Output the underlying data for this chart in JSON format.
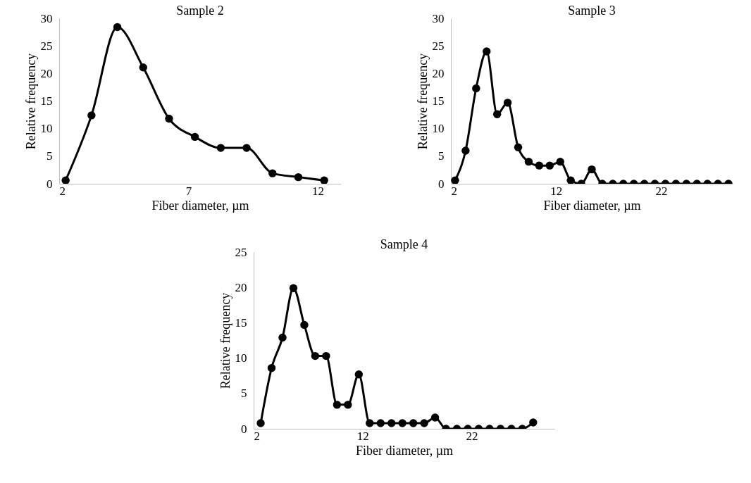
{
  "chart_data": [
    {
      "type": "line",
      "title": "Sample 2",
      "xlabel": "Fiber diameter, µm",
      "ylabel": "Relative frequency",
      "xlim": [
        2,
        12.9
      ],
      "xticks": [
        2,
        7,
        12
      ],
      "ylim": [
        0,
        30
      ],
      "yticks": [
        0,
        5,
        10,
        15,
        20,
        25,
        30
      ],
      "grid": false,
      "marker": "circle",
      "line_style": "solid",
      "series": [
        {
          "color": "#000000",
          "x": [
            2.25,
            3.25,
            4.25,
            5.25,
            6.25,
            7.25,
            8.25,
            9.25,
            10.25,
            11.25,
            12.25
          ],
          "values": [
            0.6,
            12.4,
            28.4,
            21.1,
            11.8,
            8.5,
            6.5,
            6.5,
            1.9,
            1.2,
            0.6
          ]
        }
      ]
    },
    {
      "type": "line",
      "title": "Sample 3",
      "xlabel": "Fiber diameter, µm",
      "ylabel": "Relative frequency",
      "xlim": [
        2,
        28.8
      ],
      "xticks": [
        2,
        12,
        22
      ],
      "ylim": [
        0,
        30
      ],
      "yticks": [
        0,
        5,
        10,
        15,
        20,
        25,
        30
      ],
      "grid": false,
      "marker": "circle",
      "line_style": "solid",
      "series": [
        {
          "color": "#000000",
          "x": [
            2.4,
            3.4,
            4.4,
            5.4,
            6.4,
            7.4,
            8.4,
            9.4,
            10.4,
            11.4,
            12.4,
            13.4,
            14.4,
            15.4,
            16.4,
            17.4,
            18.4,
            19.4,
            20.4,
            21.4,
            22.4,
            23.4,
            24.4,
            25.4,
            26.4,
            27.4,
            28.4
          ],
          "values": [
            0.6,
            6.0,
            17.3,
            24.0,
            12.6,
            14.7,
            6.6,
            4.0,
            3.3,
            3.3,
            4.0,
            0.6,
            0,
            2.6,
            0,
            0,
            0,
            0,
            0,
            0,
            0,
            0,
            0,
            0,
            0,
            0,
            0
          ]
        }
      ]
    },
    {
      "type": "line",
      "title": "Sample 4",
      "xlabel": "Fiber diameter, µm",
      "ylabel": "Relative frequency",
      "xlim": [
        2,
        29.6
      ],
      "xticks": [
        2,
        12,
        22
      ],
      "ylim": [
        0,
        25
      ],
      "yticks": [
        0,
        5,
        10,
        15,
        20,
        25
      ],
      "grid": false,
      "marker": "circle",
      "line_style": "solid",
      "series": [
        {
          "color": "#000000",
          "x": [
            2.65,
            3.65,
            4.65,
            5.65,
            6.65,
            7.65,
            8.65,
            9.65,
            10.65,
            11.65,
            12.65,
            13.65,
            14.65,
            15.65,
            16.65,
            17.65,
            18.65,
            19.65,
            20.65,
            21.65,
            22.65,
            23.65,
            24.65,
            25.65,
            26.65,
            27.65
          ],
          "values": [
            0.8,
            8.6,
            12.9,
            19.9,
            14.7,
            10.3,
            10.3,
            3.4,
            3.4,
            7.7,
            0.8,
            0.8,
            0.8,
            0.8,
            0.8,
            0.8,
            1.6,
            0,
            0,
            0,
            0,
            0,
            0,
            0,
            0,
            0.9
          ]
        }
      ]
    }
  ]
}
